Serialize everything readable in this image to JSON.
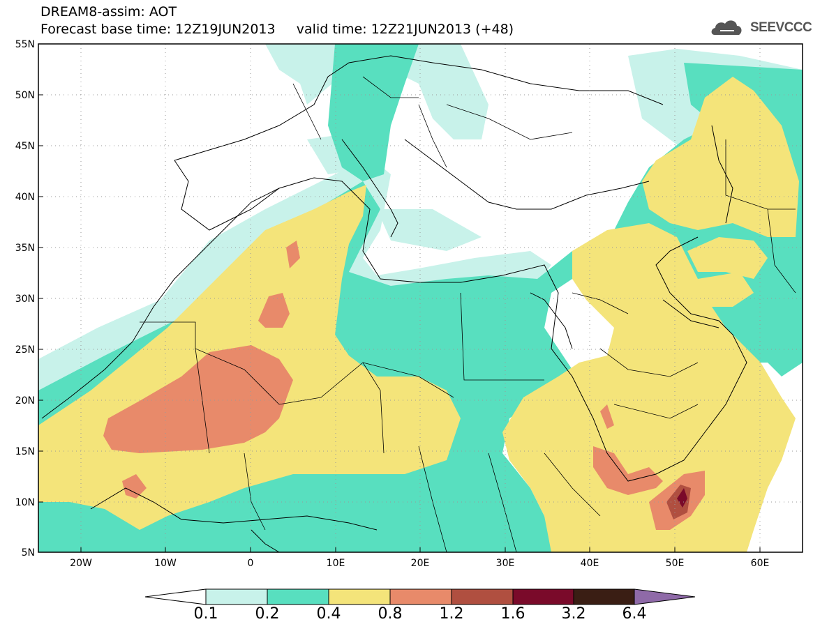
{
  "header": {
    "title_line1": "DREAM8-assim: AOT",
    "title_line2": "Forecast base time: 12Z19JUN2013     valid time: 12Z21JUN2013 (+48)"
  },
  "logo": {
    "text": "SEEVCCC",
    "icon": "cloud-icon"
  },
  "map": {
    "projection": "cylindrical",
    "lon_range": [
      -25,
      65
    ],
    "lat_range": [
      5,
      55
    ],
    "grid": "dotted",
    "lat_labels": [
      "55N",
      "50N",
      "45N",
      "40N",
      "35N",
      "30N",
      "25N",
      "20N",
      "15N",
      "10N",
      "5N"
    ],
    "lon_labels": [
      "20W",
      "10W",
      "0",
      "10E",
      "20E",
      "30E",
      "40E",
      "50E",
      "60E"
    ]
  },
  "colorbar": {
    "labels": [
      "0.1",
      "0.2",
      "0.4",
      "0.8",
      "1.2",
      "1.6",
      "3.2",
      "6.4"
    ],
    "colors": [
      "#ffffff",
      "#c8f2ea",
      "#58dfbf",
      "#f4e47a",
      "#e88a6a",
      "#b04f40",
      "#7a0a2a",
      "#3a1e14",
      "#8f6aa8"
    ]
  }
}
